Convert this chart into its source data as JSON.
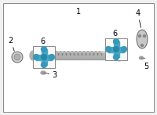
{
  "bg_color": "#f0f0f0",
  "border_color": "#888888",
  "label_1": "1",
  "label_2": "2",
  "label_3": "3",
  "label_4": "4",
  "label_5": "5",
  "label_6": "6",
  "shaft_color": "#b0b0b0",
  "shaft_wrap_color": "#808080",
  "uj_color": "#4aa8c8",
  "font_size": 7
}
